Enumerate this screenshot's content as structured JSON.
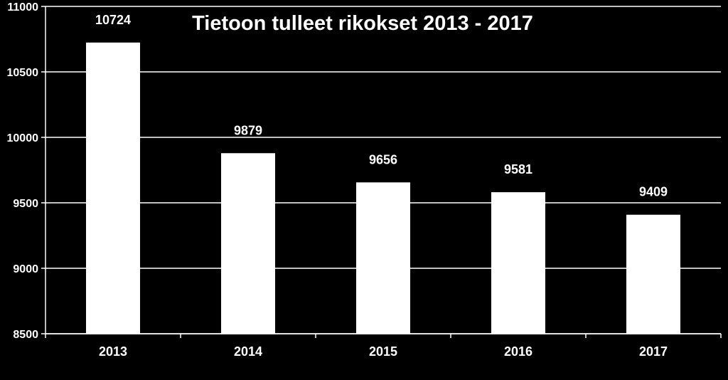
{
  "chart_data": {
    "type": "bar",
    "title": "Tietoon tulleet rikokset 2013 - 2017",
    "xlabel": "",
    "ylabel": "",
    "categories": [
      "2013",
      "2014",
      "2015",
      "2016",
      "2017"
    ],
    "values": [
      10724,
      9879,
      9656,
      9581,
      9409
    ],
    "data_labels": [
      "10724",
      "9879",
      "9656",
      "9581",
      "9409"
    ],
    "ylim": [
      8500,
      11000
    ],
    "yticks": [
      8500,
      9000,
      9500,
      10000,
      10500,
      11000
    ],
    "ytick_labels": [
      "8500",
      "9000",
      "9500",
      "10000",
      "10500",
      "11000"
    ],
    "grid": true,
    "legend": "none",
    "colors": {
      "background": "#000000",
      "bar": "#ffffff",
      "grid": "#ffffff",
      "text": "#ffffff"
    }
  }
}
